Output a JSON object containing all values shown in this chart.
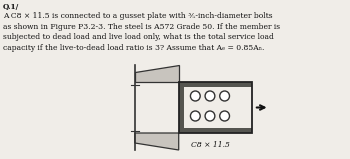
{
  "title_text": "A C8 × 11.5 is connected to a gusset plate with ⅗-inch-diameter bolts\nas shown in Figure P3.2-3. The steel is A572 Grade 50. If the member is\nsubjected to dead load and live load only, what is the total service load\ncapacity if the live-to-dead load ratio is 3? Assume that Aₑ = 0.85Aₙ.",
  "label_text": "C8 × 11.5",
  "header_text": "Q.1/",
  "bg_color": "#f0ede8",
  "text_color": "#111111",
  "channel_edge": "#222222",
  "arrow_color": "#111111",
  "bolt_fill": "#ffffff",
  "bolt_edge": "#333333",
  "gusset_fill": "#c8c4be",
  "gusset_edge": "#333333",
  "channel_face": "#e8e4df",
  "channel_border": "#333333",
  "channel_thick_border": "#444444",
  "diagram_bg": "#f8f6f2"
}
